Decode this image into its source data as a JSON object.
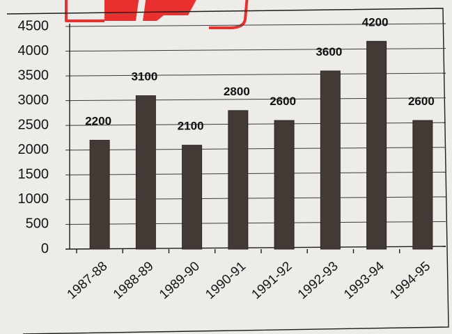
{
  "chart_data": {
    "type": "bar",
    "title": "",
    "xlabel": "",
    "ylabel": "",
    "categories": [
      "1987-88",
      "1988-89",
      "1989-90",
      "1990-91",
      "1991-92",
      "1992-93",
      "1993-94",
      "1994-95"
    ],
    "values": [
      2200,
      3100,
      2100,
      2800,
      2600,
      3600,
      4200,
      2600
    ],
    "data_labels": [
      "2200",
      "3100",
      "2100",
      "2800",
      "2600",
      "3600",
      "4200",
      "2600"
    ],
    "yticks": [
      "0",
      "500",
      "1000",
      "1500",
      "2000",
      "2500",
      "3000",
      "3500",
      "4000",
      "4500"
    ],
    "ylim": [
      0,
      4500
    ],
    "grid": true,
    "legend": "none",
    "colors": {
      "bar": "#433a36",
      "watermark": "#e8302f"
    }
  }
}
